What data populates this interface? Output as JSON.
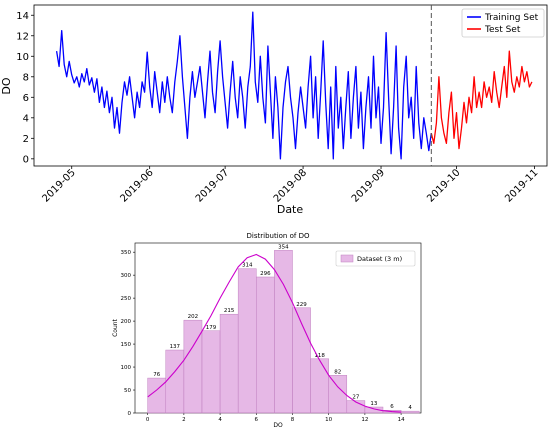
{
  "chart_data": [
    {
      "type": "line",
      "title": "",
      "xlabel": "Date",
      "ylabel": "DO",
      "xlim": [
        "2019-04-16",
        "2019-11-06"
      ],
      "ylim": [
        -0.7,
        15.0
      ],
      "yticks": [
        0,
        2,
        4,
        6,
        8,
        10,
        12,
        14
      ],
      "xticks": [
        "2019-05",
        "2019-06",
        "2019-07",
        "2019-08",
        "2019-09",
        "2019-10",
        "2019-11"
      ],
      "split_date": "2019-09-21",
      "grid": false,
      "legend": "top-right",
      "series": [
        {
          "name": "Training Set",
          "color": "#0000ff",
          "points": [
            [
              "2019-04-25",
              10.5
            ],
            [
              "2019-04-26",
              9.0
            ],
            [
              "2019-04-27",
              12.5
            ],
            [
              "2019-04-28",
              9.2
            ],
            [
              "2019-04-29",
              8.0
            ],
            [
              "2019-04-30",
              9.5
            ],
            [
              "2019-05-01",
              8.2
            ],
            [
              "2019-05-02",
              7.4
            ],
            [
              "2019-05-03",
              8.0
            ],
            [
              "2019-05-04",
              7.0
            ],
            [
              "2019-05-05",
              8.3
            ],
            [
              "2019-05-06",
              7.5
            ],
            [
              "2019-05-07",
              8.8
            ],
            [
              "2019-05-08",
              7.2
            ],
            [
              "2019-05-09",
              7.9
            ],
            [
              "2019-05-10",
              6.5
            ],
            [
              "2019-05-11",
              7.8
            ],
            [
              "2019-05-12",
              5.5
            ],
            [
              "2019-05-13",
              7.0
            ],
            [
              "2019-05-14",
              5.0
            ],
            [
              "2019-05-15",
              6.6
            ],
            [
              "2019-05-16",
              4.5
            ],
            [
              "2019-05-17",
              6.0
            ],
            [
              "2019-05-18",
              3.0
            ],
            [
              "2019-05-19",
              5.0
            ],
            [
              "2019-05-20",
              2.5
            ],
            [
              "2019-05-21",
              5.5
            ],
            [
              "2019-05-22",
              7.5
            ],
            [
              "2019-05-23",
              6.2
            ],
            [
              "2019-05-24",
              8.0
            ],
            [
              "2019-05-25",
              6.0
            ],
            [
              "2019-05-26",
              4.0
            ],
            [
              "2019-05-27",
              6.5
            ],
            [
              "2019-05-28",
              5.0
            ],
            [
              "2019-05-29",
              7.5
            ],
            [
              "2019-05-30",
              6.5
            ],
            [
              "2019-05-31",
              10.4
            ],
            [
              "2019-06-01",
              7.0
            ],
            [
              "2019-06-02",
              5.0
            ],
            [
              "2019-06-03",
              8.5
            ],
            [
              "2019-06-04",
              6.5
            ],
            [
              "2019-06-05",
              4.5
            ],
            [
              "2019-06-06",
              7.5
            ],
            [
              "2019-06-07",
              5.5
            ],
            [
              "2019-06-08",
              8.0
            ],
            [
              "2019-06-09",
              6.0
            ],
            [
              "2019-06-10",
              4.5
            ],
            [
              "2019-06-11",
              7.5
            ],
            [
              "2019-06-12",
              9.5
            ],
            [
              "2019-06-13",
              12.0
            ],
            [
              "2019-06-14",
              8.0
            ],
            [
              "2019-06-15",
              5.0
            ],
            [
              "2019-06-16",
              2.0
            ],
            [
              "2019-06-17",
              6.0
            ],
            [
              "2019-06-18",
              8.5
            ],
            [
              "2019-06-19",
              6.0
            ],
            [
              "2019-06-20",
              7.5
            ],
            [
              "2019-06-21",
              9.0
            ],
            [
              "2019-06-22",
              6.5
            ],
            [
              "2019-06-23",
              4.0
            ],
            [
              "2019-06-24",
              7.5
            ],
            [
              "2019-06-25",
              10.5
            ],
            [
              "2019-06-26",
              6.5
            ],
            [
              "2019-06-27",
              4.5
            ],
            [
              "2019-06-28",
              8.5
            ],
            [
              "2019-06-29",
              11.5
            ],
            [
              "2019-06-30",
              8.0
            ],
            [
              "2019-07-01",
              5.5
            ],
            [
              "2019-07-02",
              3.0
            ],
            [
              "2019-07-03",
              6.5
            ],
            [
              "2019-07-04",
              9.5
            ],
            [
              "2019-07-05",
              6.0
            ],
            [
              "2019-07-06",
              4.0
            ],
            [
              "2019-07-07",
              8.0
            ],
            [
              "2019-07-08",
              6.0
            ],
            [
              "2019-07-09",
              3.0
            ],
            [
              "2019-07-10",
              7.0
            ],
            [
              "2019-07-11",
              9.0
            ],
            [
              "2019-07-12",
              14.3
            ],
            [
              "2019-07-13",
              7.5
            ],
            [
              "2019-07-14",
              5.5
            ],
            [
              "2019-07-15",
              10.0
            ],
            [
              "2019-07-16",
              6.0
            ],
            [
              "2019-07-17",
              3.5
            ],
            [
              "2019-07-18",
              11.0
            ],
            [
              "2019-07-19",
              6.5
            ],
            [
              "2019-07-20",
              2.0
            ],
            [
              "2019-07-21",
              8.0
            ],
            [
              "2019-07-22",
              5.0
            ],
            [
              "2019-07-23",
              0.0
            ],
            [
              "2019-07-24",
              5.0
            ],
            [
              "2019-07-25",
              7.5
            ],
            [
              "2019-07-26",
              9.0
            ],
            [
              "2019-07-27",
              6.0
            ],
            [
              "2019-07-28",
              4.0
            ],
            [
              "2019-07-29",
              1.0
            ],
            [
              "2019-07-30",
              4.5
            ],
            [
              "2019-07-31",
              7.0
            ],
            [
              "2019-08-01",
              5.0
            ],
            [
              "2019-08-02",
              3.0
            ],
            [
              "2019-08-03",
              7.0
            ],
            [
              "2019-08-04",
              10.0
            ],
            [
              "2019-08-05",
              4.0
            ],
            [
              "2019-08-06",
              8.0
            ],
            [
              "2019-08-07",
              2.0
            ],
            [
              "2019-08-08",
              6.5
            ],
            [
              "2019-08-09",
              11.5
            ],
            [
              "2019-08-10",
              5.5
            ],
            [
              "2019-08-11",
              1.0
            ],
            [
              "2019-08-12",
              7.0
            ],
            [
              "2019-08-13",
              0.0
            ],
            [
              "2019-08-14",
              9.0
            ],
            [
              "2019-08-15",
              3.0
            ],
            [
              "2019-08-16",
              6.0
            ],
            [
              "2019-08-17",
              1.0
            ],
            [
              "2019-08-18",
              5.0
            ],
            [
              "2019-08-19",
              8.5
            ],
            [
              "2019-08-20",
              2.0
            ],
            [
              "2019-08-21",
              6.0
            ],
            [
              "2019-08-22",
              9.0
            ],
            [
              "2019-08-23",
              3.0
            ],
            [
              "2019-08-24",
              6.5
            ],
            [
              "2019-08-25",
              1.0
            ],
            [
              "2019-08-26",
              5.0
            ],
            [
              "2019-08-27",
              8.0
            ],
            [
              "2019-08-28",
              3.0
            ],
            [
              "2019-08-29",
              10.0
            ],
            [
              "2019-08-30",
              4.0
            ],
            [
              "2019-08-31",
              7.0
            ],
            [
              "2019-09-01",
              1.5
            ],
            [
              "2019-09-02",
              5.0
            ],
            [
              "2019-09-03",
              12.3
            ],
            [
              "2019-09-04",
              6.0
            ],
            [
              "2019-09-05",
              0.5
            ],
            [
              "2019-09-06",
              5.0
            ],
            [
              "2019-09-07",
              11.0
            ],
            [
              "2019-09-08",
              3.0
            ],
            [
              "2019-09-09",
              0.0
            ],
            [
              "2019-09-10",
              7.0
            ],
            [
              "2019-09-11",
              10.0
            ],
            [
              "2019-09-12",
              4.0
            ],
            [
              "2019-09-13",
              6.0
            ],
            [
              "2019-09-14",
              2.0
            ],
            [
              "2019-09-15",
              9.0
            ],
            [
              "2019-09-16",
              3.5
            ],
            [
              "2019-09-17",
              1.0
            ],
            [
              "2019-09-18",
              4.0
            ],
            [
              "2019-09-19",
              2.5
            ],
            [
              "2019-09-20",
              0.8
            ],
            [
              "2019-09-21",
              2.5
            ]
          ]
        },
        {
          "name": "Test Set",
          "color": "#ff0000",
          "points": [
            [
              "2019-09-21",
              2.5
            ],
            [
              "2019-09-22",
              1.5
            ],
            [
              "2019-09-23",
              3.5
            ],
            [
              "2019-09-24",
              8.0
            ],
            [
              "2019-09-25",
              4.0
            ],
            [
              "2019-09-26",
              2.5
            ],
            [
              "2019-09-27",
              1.5
            ],
            [
              "2019-09-28",
              4.5
            ],
            [
              "2019-09-29",
              6.5
            ],
            [
              "2019-09-30",
              2.0
            ],
            [
              "2019-10-01",
              4.5
            ],
            [
              "2019-10-02",
              1.0
            ],
            [
              "2019-10-03",
              3.0
            ],
            [
              "2019-10-04",
              5.5
            ],
            [
              "2019-10-05",
              3.5
            ],
            [
              "2019-10-06",
              6.0
            ],
            [
              "2019-10-07",
              4.5
            ],
            [
              "2019-10-08",
              8.0
            ],
            [
              "2019-10-09",
              5.0
            ],
            [
              "2019-10-10",
              6.5
            ],
            [
              "2019-10-11",
              5.0
            ],
            [
              "2019-10-12",
              7.5
            ],
            [
              "2019-10-13",
              6.0
            ],
            [
              "2019-10-14",
              7.0
            ],
            [
              "2019-10-15",
              5.5
            ],
            [
              "2019-10-16",
              8.5
            ],
            [
              "2019-10-17",
              6.5
            ],
            [
              "2019-10-18",
              5.0
            ],
            [
              "2019-10-19",
              7.0
            ],
            [
              "2019-10-20",
              9.0
            ],
            [
              "2019-10-21",
              6.0
            ],
            [
              "2019-10-22",
              10.5
            ],
            [
              "2019-10-23",
              7.5
            ],
            [
              "2019-10-24",
              6.5
            ],
            [
              "2019-10-25",
              8.0
            ],
            [
              "2019-10-26",
              7.0
            ],
            [
              "2019-10-27",
              9.0
            ],
            [
              "2019-10-28",
              7.5
            ],
            [
              "2019-10-29",
              8.5
            ],
            [
              "2019-10-30",
              7.0
            ],
            [
              "2019-10-31",
              7.5
            ]
          ]
        }
      ]
    },
    {
      "type": "bar",
      "subtype": "histogram",
      "title": "Distribution of DO",
      "xlabel": "DO",
      "ylabel": "Count",
      "xlim": [
        -0.7,
        15.1
      ],
      "ylim": [
        0,
        370
      ],
      "xticks": [
        0,
        2,
        4,
        6,
        8,
        10,
        12,
        14
      ],
      "yticks": [
        0,
        50,
        100,
        150,
        200,
        250,
        300,
        350
      ],
      "bin_edges": [
        0,
        1,
        2,
        3,
        4,
        5,
        6,
        7,
        8,
        9,
        10,
        11,
        12,
        13,
        14,
        15
      ],
      "series": [
        {
          "name": "Dataset (3 m)",
          "color": "#dda0dd",
          "values": [
            76,
            137,
            202,
            179,
            215,
            314,
            296,
            354,
            229,
            118,
            82,
            27,
            13,
            6,
            4
          ]
        }
      ],
      "kde": {
        "color": "#cc00cc",
        "x": [
          0,
          0.5,
          1,
          1.5,
          2,
          2.5,
          3,
          3.5,
          4,
          4.5,
          5,
          5.5,
          6,
          6.5,
          7,
          7.5,
          8,
          8.5,
          9,
          9.5,
          10,
          10.5,
          11,
          11.5,
          12,
          12.5,
          13,
          13.5,
          14
        ],
        "y": [
          35,
          50,
          68,
          90,
          115,
          145,
          178,
          212,
          250,
          285,
          318,
          338,
          345,
          335,
          312,
          280,
          240,
          195,
          152,
          115,
          82,
          57,
          38,
          24,
          15,
          9,
          5,
          3,
          2
        ]
      },
      "legend": "top-right"
    }
  ]
}
